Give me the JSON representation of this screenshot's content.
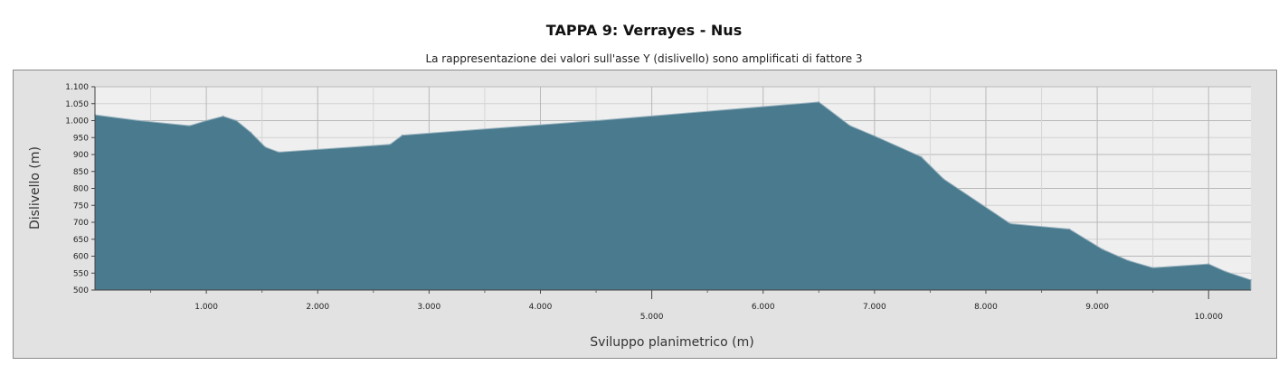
{
  "chart_data": {
    "type": "area",
    "title": "TAPPA 9: Verrayes - Nus",
    "subtitle": "La rappresentazione dei valori sull'asse Y (dislivello) sono amplificati di fattore 3",
    "xlabel": "Sviluppo planimetrico (m)",
    "ylabel": "Dislivello (m)",
    "xlim": [
      0,
      10380
    ],
    "ylim": [
      500,
      1100
    ],
    "grid": true,
    "fill_color": "#4a7a8e",
    "x_ticks": [
      {
        "value": 1000,
        "label": "1.000"
      },
      {
        "value": 2000,
        "label": "2.000"
      },
      {
        "value": 3000,
        "label": "3.000"
      },
      {
        "value": 4000,
        "label": "4.000"
      },
      {
        "value": 5000,
        "label": "5.000"
      },
      {
        "value": 6000,
        "label": "6.000"
      },
      {
        "value": 7000,
        "label": "7.000"
      },
      {
        "value": 8000,
        "label": "8.000"
      },
      {
        "value": 9000,
        "label": "9.000"
      },
      {
        "value": 10000,
        "label": "10.000"
      }
    ],
    "y_ticks": [
      {
        "value": 500,
        "label": "500"
      },
      {
        "value": 550,
        "label": "550"
      },
      {
        "value": 600,
        "label": "600"
      },
      {
        "value": 650,
        "label": "650"
      },
      {
        "value": 700,
        "label": "700"
      },
      {
        "value": 750,
        "label": "750"
      },
      {
        "value": 800,
        "label": "800"
      },
      {
        "value": 850,
        "label": "850"
      },
      {
        "value": 900,
        "label": "900"
      },
      {
        "value": 950,
        "label": "950"
      },
      {
        "value": 1000,
        "label": "1.000"
      },
      {
        "value": 1050,
        "label": "1.050"
      },
      {
        "value": 1100,
        "label": "1.100"
      }
    ],
    "x": [
      0,
      400,
      850,
      1000,
      1150,
      1270,
      1400,
      1530,
      1650,
      2650,
      2760,
      4500,
      6500,
      6780,
      7000,
      7420,
      7620,
      8220,
      8750,
      9050,
      9280,
      9500,
      10000,
      10150,
      10380
    ],
    "y": [
      1017,
      1000,
      985,
      1000,
      1013,
      1000,
      965,
      922,
      907,
      930,
      957,
      1000,
      1055,
      985,
      955,
      893,
      828,
      696,
      680,
      620,
      587,
      566,
      577,
      555,
      530
    ]
  }
}
